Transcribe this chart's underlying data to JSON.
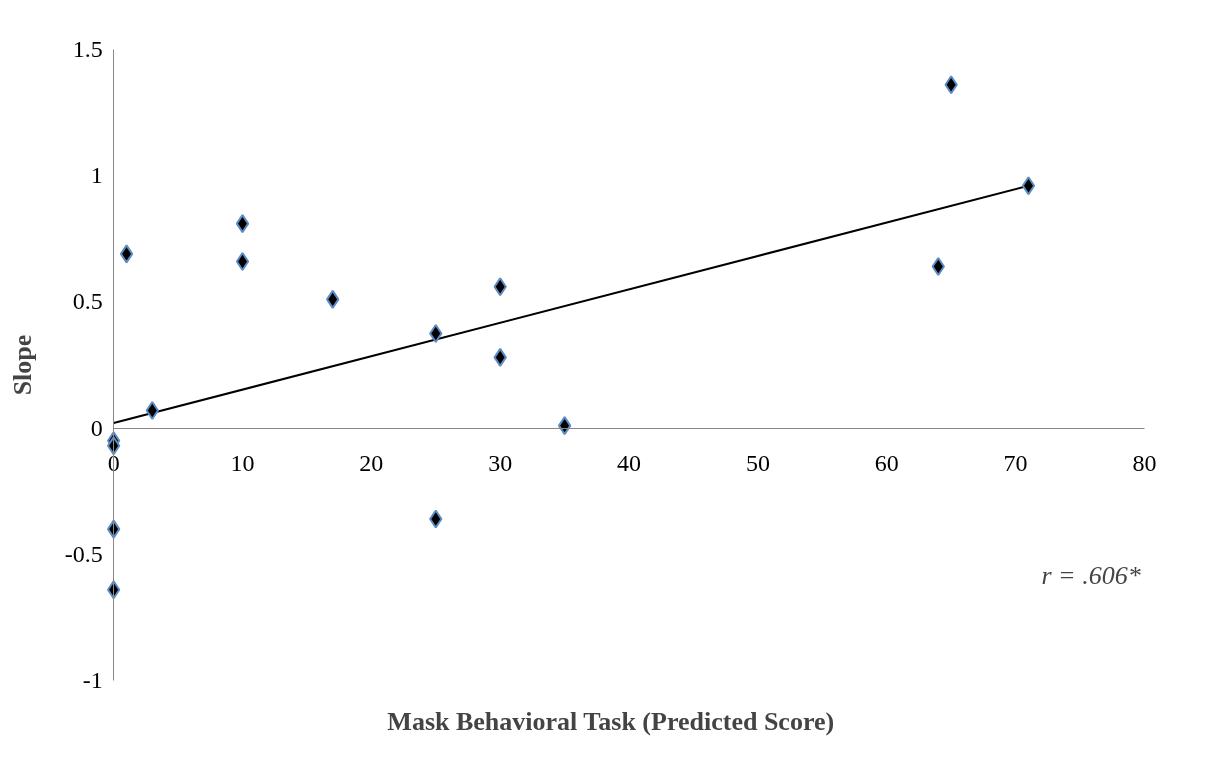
{
  "chart_data": {
    "type": "scatter",
    "xlabel": "Mask Behavioral Task (Predicted Score)",
    "ylabel": "Slope",
    "marker": "diamond",
    "grid": false,
    "xlim": [
      0,
      80
    ],
    "xticks": [
      0,
      10,
      20,
      30,
      40,
      50,
      60,
      70,
      80
    ],
    "ylim": [
      -1,
      1.5
    ],
    "yticks": [
      -1,
      -0.5,
      0,
      0.5,
      1,
      1.5
    ],
    "annotations": [
      "r = .606*"
    ],
    "series": [
      {
        "color": "#000000",
        "x": [
          0,
          0,
          0,
          0,
          1,
          3,
          10,
          10,
          17,
          25,
          25,
          30,
          30,
          35,
          64,
          65,
          71
        ],
        "values": [
          -0.05,
          -0.07,
          -0.4,
          -0.64,
          0.69,
          0.07,
          0.81,
          0.66,
          0.51,
          0.375,
          -0.36,
          0.56,
          0.28,
          0.01,
          0.64,
          1.36,
          0.96
        ]
      },
      {
        "type": "line",
        "color": "#000000",
        "marker": "none",
        "x": [
          0,
          71
        ],
        "values": [
          0.02,
          0.96
        ]
      }
    ]
  }
}
